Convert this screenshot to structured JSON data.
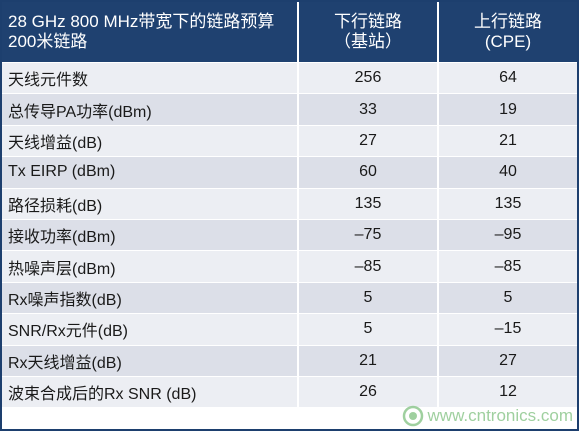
{
  "table": {
    "header": {
      "col1_lines": [
        "28 GHz 800 MHz带宽下的链路预算",
        "200米链路"
      ],
      "col2_lines": [
        "下行链路",
        "（基站）"
      ],
      "col3_lines": [
        "上行链路",
        "(CPE)"
      ]
    },
    "rows": [
      {
        "label": "天线元件数",
        "downlink": "256",
        "uplink": "64"
      },
      {
        "label": "总传导PA功率(dBm)",
        "downlink": "33",
        "uplink": "19"
      },
      {
        "label": "天线增益(dB)",
        "downlink": "27",
        "uplink": "21"
      },
      {
        "label": "Tx EIRP (dBm)",
        "downlink": "60",
        "uplink": "40"
      },
      {
        "label": "路径损耗(dB)",
        "downlink": "135",
        "uplink": "135"
      },
      {
        "label": "接收功率(dBm)",
        "downlink": "–75",
        "uplink": "–95"
      },
      {
        "label": "热噪声层(dBm)",
        "downlink": "–85",
        "uplink": "–85"
      },
      {
        "label": "Rx噪声指数(dB)",
        "downlink": "5",
        "uplink": "5"
      },
      {
        "label": "SNR/Rx元件(dB)",
        "downlink": "5",
        "uplink": "–15"
      },
      {
        "label": "Rx天线增益(dB)",
        "downlink": "21",
        "uplink": "27"
      },
      {
        "label": "波束合成后的Rx SNR (dB)",
        "downlink": "26",
        "uplink": "12"
      }
    ]
  },
  "watermark": {
    "text": "www.cntronics.com",
    "icon": "cntronics-logo-icon",
    "color": "#8fc88f"
  },
  "colors": {
    "header_bg": "#1f4170",
    "row_light": "#eceef3",
    "row_dark": "#dcdfe8",
    "border": "#1d3f6e"
  }
}
